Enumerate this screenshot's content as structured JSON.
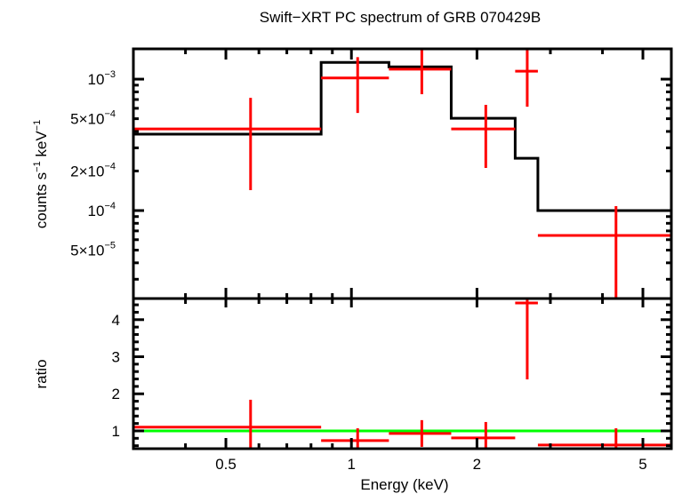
{
  "chart_data": [
    {
      "type": "scatter",
      "panel": "spectrum",
      "title": "Swift−XRT PC spectrum of GRB 070429B",
      "ylabel_parts": [
        "counts s",
        "−1",
        " keV",
        "−1"
      ],
      "x_scale": "log",
      "y_scale": "log",
      "xlim": [
        0.3,
        5.85
      ],
      "ylim": [
        2.14e-05,
        0.0017
      ],
      "y_ticks": [
        {
          "value": 0.001,
          "mant": "",
          "exp": "−3"
        },
        {
          "value": 0.0005,
          "mant": "5×",
          "exp": "−4"
        },
        {
          "value": 0.0002,
          "mant": "2×",
          "exp": "−4"
        },
        {
          "value": 0.0001,
          "mant": "",
          "exp": "−4"
        },
        {
          "value": 5e-05,
          "mant": "5×",
          "exp": "−5"
        }
      ],
      "data_color": "#ff0000",
      "model_color": "#000000",
      "data": [
        {
          "x": 0.573,
          "xlo": 0.3,
          "xhi": 0.846,
          "y": 0.000418,
          "ylo": 0.000143,
          "yhi": 0.00072
        },
        {
          "x": 1.035,
          "xlo": 0.846,
          "xhi": 1.23,
          "y": 0.00102,
          "ylo": 0.000553,
          "yhi": 0.00147
        },
        {
          "x": 1.475,
          "xlo": 1.23,
          "xhi": 1.735,
          "y": 0.00119,
          "ylo": 0.000768,
          "yhi": 0.0017
        },
        {
          "x": 2.1,
          "xlo": 1.735,
          "xhi": 2.47,
          "y": 0.000418,
          "ylo": 0.000211,
          "yhi": 0.000637
        },
        {
          "x": 2.64,
          "xlo": 2.47,
          "xhi": 2.8,
          "y": 0.00115,
          "ylo": 0.000617,
          "yhi": 0.0017
        },
        {
          "x": 4.31,
          "xlo": 2.8,
          "xhi": 5.85,
          "y": 6.47e-05,
          "ylo": 2.14e-05,
          "yhi": 0.000108
        }
      ],
      "model": [
        {
          "xlo": 0.3,
          "xhi": 0.846,
          "y": 0.000381
        },
        {
          "xlo": 0.846,
          "xhi": 1.23,
          "y": 0.00134
        },
        {
          "xlo": 1.23,
          "xhi": 1.735,
          "y": 0.00124
        },
        {
          "xlo": 1.735,
          "xhi": 2.47,
          "y": 0.000504
        },
        {
          "xlo": 2.47,
          "xhi": 2.8,
          "y": 0.00025
        },
        {
          "xlo": 2.8,
          "xhi": 5.85,
          "y": 0.0001
        }
      ]
    },
    {
      "type": "scatter",
      "panel": "ratio",
      "xlabel": "Energy (keV)",
      "ylabel": "ratio",
      "x_scale": "log",
      "y_scale": "linear",
      "xlim": [
        0.3,
        5.85
      ],
      "ylim": [
        0.52,
        4.57
      ],
      "x_ticks": [
        "0.5",
        "1",
        "2",
        "5"
      ],
      "x_tick_values": [
        0.5,
        1,
        2,
        5
      ],
      "y_ticks": [
        "1",
        "2",
        "3",
        "4"
      ],
      "y_tick_values": [
        1,
        2,
        3,
        4
      ],
      "reference_line": 1,
      "reference_color": "#00ff00",
      "data_color": "#ff0000",
      "data": [
        {
          "x": 0.573,
          "xlo": 0.3,
          "xhi": 0.846,
          "y": 1.1,
          "ylo": 0.52,
          "yhi": 1.84
        },
        {
          "x": 1.035,
          "xlo": 0.846,
          "xhi": 1.23,
          "y": 0.74,
          "ylo": 0.52,
          "yhi": 1.07
        },
        {
          "x": 1.475,
          "xlo": 1.23,
          "xhi": 1.735,
          "y": 0.93,
          "ylo": 0.57,
          "yhi": 1.29
        },
        {
          "x": 2.1,
          "xlo": 1.735,
          "xhi": 2.47,
          "y": 0.81,
          "ylo": 0.52,
          "yhi": 1.24
        },
        {
          "x": 2.64,
          "xlo": 2.47,
          "xhi": 2.8,
          "y": 4.45,
          "ylo": 2.39,
          "yhi": 4.57
        },
        {
          "x": 4.31,
          "xlo": 2.8,
          "xhi": 5.85,
          "y": 0.62,
          "ylo": 0.52,
          "yhi": 1.07
        }
      ]
    }
  ]
}
